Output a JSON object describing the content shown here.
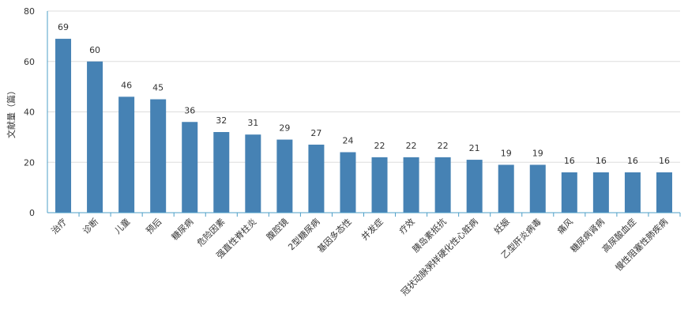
{
  "chart_data": {
    "type": "bar",
    "ylabel": "文献量（篇）",
    "ylim": [
      0,
      80
    ],
    "yticks": [
      0,
      20,
      40,
      60,
      80
    ],
    "grid": true,
    "categories": [
      "治疗",
      "诊断",
      "儿童",
      "预后",
      "糖尿病",
      "危险因素",
      "强直性脊柱炎",
      "腹腔镜",
      "2型糖尿病",
      "基因多态性",
      "并发症",
      "疗效",
      "胰岛素抵抗",
      "冠状动脉粥样硬化性心脏病",
      "妊娠",
      "乙型肝炎病毒",
      "痛风",
      "糖尿病肾病",
      "高尿酸血症",
      "慢性阻塞性肺疾病"
    ],
    "values": [
      69,
      60,
      46,
      45,
      36,
      32,
      31,
      29,
      27,
      24,
      22,
      22,
      22,
      21,
      19,
      19,
      16,
      16,
      16,
      16
    ],
    "colors": {
      "bar": "#4682b4",
      "axis": "#4d9fc7",
      "grid": "#dddddd",
      "text": "#333333"
    }
  }
}
